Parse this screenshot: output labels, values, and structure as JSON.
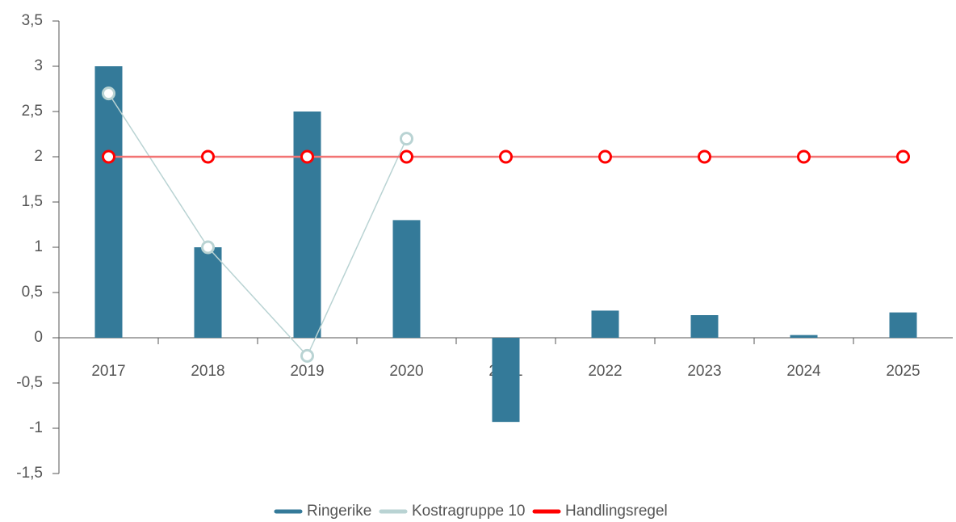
{
  "chart_data": {
    "type": "bar",
    "categories": [
      "2017",
      "2018",
      "2019",
      "2020",
      "2021",
      "2022",
      "2023",
      "2024",
      "2025"
    ],
    "series": [
      {
        "name": "Ringerike",
        "color": "#347a99",
        "type": "bar",
        "values": [
          3.0,
          1.0,
          2.5,
          1.3,
          -0.93,
          0.3,
          0.25,
          0.03,
          0.28
        ]
      },
      {
        "name": "Kostragruppe 10",
        "color": "#b9d3d3",
        "type": "line",
        "values": [
          2.7,
          1.0,
          -0.2,
          2.2,
          null,
          null,
          null,
          null,
          null
        ]
      },
      {
        "name": "Handlingsregel",
        "color": "#ff0000",
        "type": "line",
        "values": [
          2,
          2,
          2,
          2,
          2,
          2,
          2,
          2,
          2
        ]
      }
    ],
    "ylim": [
      -1.5,
      3.5
    ],
    "yticks": [
      {
        "value": -1.5,
        "label": "-1,5"
      },
      -1,
      {
        "value": -0.5,
        "label": "-0,5"
      },
      0,
      {
        "value": 0.5,
        "label": "0,5"
      },
      1,
      {
        "value": 1.5,
        "label": "1,5"
      },
      2,
      {
        "value": 2.5,
        "label": "2,5"
      },
      3,
      {
        "value": 3.5,
        "label": "3,5"
      }
    ],
    "legend": "bottom"
  }
}
